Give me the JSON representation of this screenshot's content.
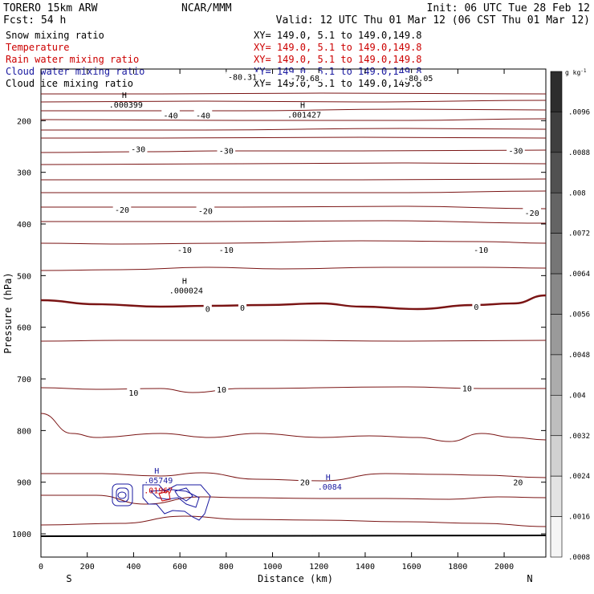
{
  "header": {
    "model": "TORERO  15km ARW",
    "center": "NCAR/MMM",
    "init": "Init: 06 UTC Tue 28 Feb 12",
    "fcst": "Fcst:    54 h",
    "valid": "Valid: 12 UTC Thu 01 Mar 12 (06 CST Thu 01 Mar 12)"
  },
  "legend": [
    {
      "name": "Snow mixing ratio",
      "xy": "",
      "color": "#000000"
    },
    {
      "name": "Temperature",
      "xy": "XY= 149.0,  5.1 to 149.0,149.8",
      "color": "#cc0000"
    },
    {
      "name": "Rain water mixing ratio",
      "xy": "XY= 149.0,  5.1 to 149.0,149.8",
      "color": "#cc0000"
    },
    {
      "name": "Cloud water mixing ratio",
      "xy": "XY= 149.0,  5.1 to 149.0,149.8",
      "color": "#1a1aa0"
    },
    {
      "name": "Cloud ice mixing ratio",
      "xy": "XY= 149.0,  5.1 to 149.0,149.8",
      "color": "#000000"
    }
  ],
  "top_xy": "XY= 149.0,  5.1 to 149.0,149.8",
  "colorbar": {
    "unit": "g kg",
    "unit_sup": "-1",
    "ticks": [
      ".0096",
      ".0088",
      ".008",
      ".0072",
      ".0064",
      ".0056",
      ".0048",
      ".004",
      ".0032",
      ".0024",
      ".0016",
      ".0008"
    ]
  },
  "chart_data": {
    "type": "contour",
    "xlabel": "Distance (km)",
    "ylabel": "Pressure (hPa)",
    "xlim": [
      0,
      2180
    ],
    "ylim": [
      1045,
      100
    ],
    "x_ticks": [
      0,
      200,
      400,
      600,
      800,
      1000,
      1200,
      1400,
      1600,
      1800,
      2000
    ],
    "y_ticks": [
      200,
      300,
      400,
      500,
      600,
      700,
      800,
      900,
      1000
    ],
    "x_end_labels": {
      "left": "S",
      "right": "N"
    },
    "temperature_levels": [
      {
        "value": -80,
        "label": "-80.31",
        "label_x": 870,
        "p": 115
      },
      {
        "value": -80,
        "label": "-79.68",
        "label_x": 1140,
        "p": 117
      },
      {
        "value": -80,
        "label": "-80.05",
        "label_x": 1630,
        "p": 117
      },
      {
        "value": -40,
        "label": "-40",
        "label_x": 560,
        "p": 189
      },
      {
        "value": -40,
        "label": "-40",
        "label_x": 700,
        "p": 189
      },
      {
        "value": -30,
        "label": "-30",
        "label_x": 420,
        "p": 255
      },
      {
        "value": -30,
        "label": "-30",
        "label_x": 800,
        "p": 258
      },
      {
        "value": -30,
        "label": "-30",
        "label_x": 2050,
        "p": 258
      },
      {
        "value": -20,
        "label": "-20",
        "label_x": 350,
        "p": 372
      },
      {
        "value": -20,
        "label": "-20",
        "label_x": 710,
        "p": 374
      },
      {
        "value": -20,
        "label": "-20",
        "label_x": 2120,
        "p": 378
      },
      {
        "value": -10,
        "label": "-10",
        "label_x": 620,
        "p": 450
      },
      {
        "value": -10,
        "label": "-10",
        "label_x": 800,
        "p": 450
      },
      {
        "value": -10,
        "label": "-10",
        "label_x": 1900,
        "p": 450
      },
      {
        "value": 0,
        "label": "0",
        "label_x": 720,
        "p": 564
      },
      {
        "value": 0,
        "label": "0",
        "label_x": 870,
        "p": 562
      },
      {
        "value": 0,
        "label": "0",
        "label_x": 1880,
        "p": 560
      },
      {
        "value": 10,
        "label": "10",
        "label_x": 400,
        "p": 726
      },
      {
        "value": 10,
        "label": "10",
        "label_x": 780,
        "p": 720
      },
      {
        "value": 10,
        "label": "10",
        "label_x": 1840,
        "p": 718
      },
      {
        "value": 20,
        "label": "20",
        "label_x": 1140,
        "p": 900
      },
      {
        "value": 20,
        "label": "20",
        "label_x": 2060,
        "p": 900
      }
    ],
    "extrema": [
      {
        "label": "H",
        "value": ".000399",
        "x": 360,
        "p": 165,
        "color": "#000000"
      },
      {
        "label": "H",
        "value": ".001427",
        "x": 1130,
        "p": 185,
        "color": "#000000"
      },
      {
        "label": "H",
        "value": ".000024",
        "x": 620,
        "p": 525,
        "color": "#000000"
      },
      {
        "label": "H",
        "value": ".0084",
        "x": 1240,
        "p": 905,
        "color": "#1a1aa0"
      },
      {
        "label": "H",
        "value": ".05749",
        "x": 500,
        "p": 893,
        "color": "#1a1aa0"
      },
      {
        "label": "",
        "value": ".01967",
        "x": 500,
        "p": 912,
        "color": "#cc0000"
      }
    ]
  }
}
